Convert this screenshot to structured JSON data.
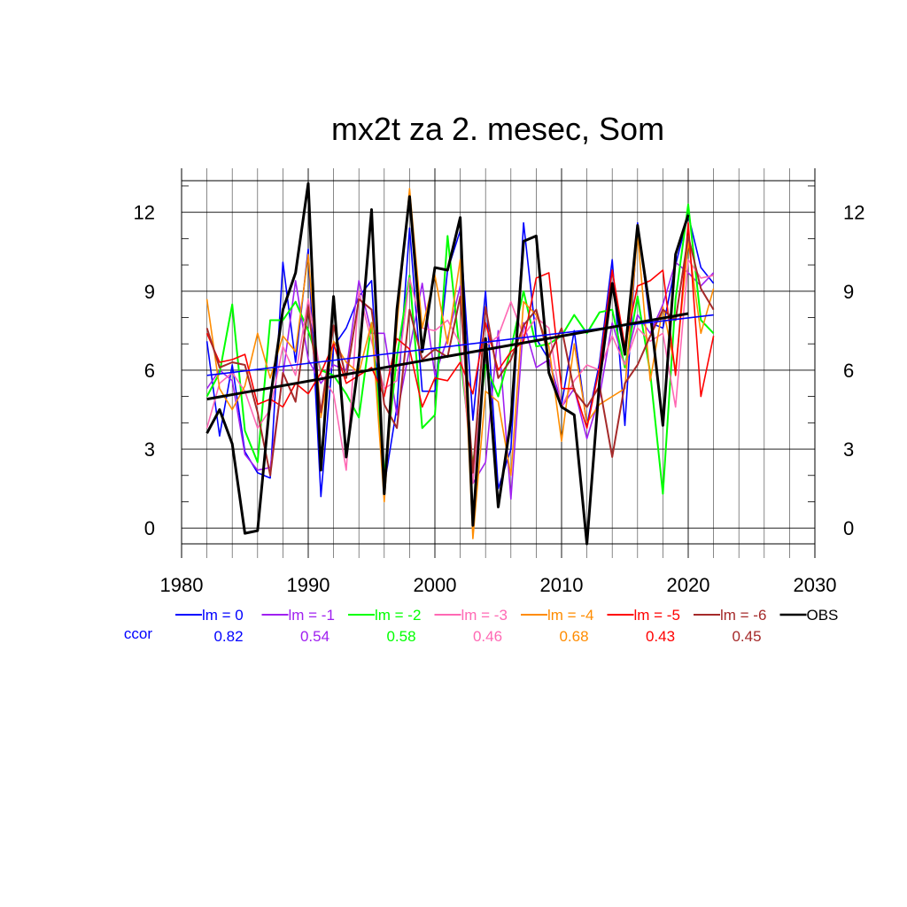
{
  "chart_data": {
    "type": "line",
    "title": "mx2t za 2. mesec, Som",
    "xlim": [
      1980,
      2030
    ],
    "ylim": [
      -0.6,
      13.2
    ],
    "x_ticks": [
      1980,
      1990,
      2000,
      2010,
      2020,
      2030
    ],
    "y_ticks": [
      0,
      3,
      6,
      9,
      12
    ],
    "y_ticks_right": [
      0,
      3,
      6,
      9,
      12
    ],
    "grid": true,
    "legend_position": "bottom",
    "ccor_label": "ccor",
    "series": [
      {
        "name": "lm = 0",
        "color": "#0000ff",
        "width": 1.6,
        "ccor": "0.82",
        "x": [
          1982,
          1983,
          1984,
          1985,
          1986,
          1987,
          1988,
          1989,
          1990,
          1991,
          1992,
          1993,
          1994,
          1995,
          1996,
          1997,
          1998,
          1999,
          2000,
          2001,
          2002,
          2003,
          2004,
          2005,
          2006,
          2007,
          2008,
          2009,
          2010,
          2011,
          2012,
          2013,
          2014,
          2015,
          2016,
          2017,
          2018,
          2019,
          2020,
          2021,
          2022
        ],
        "y": [
          7.1,
          3.5,
          6.2,
          2.9,
          2.1,
          1.9,
          10.1,
          6.3,
          10.6,
          1.2,
          6.9,
          7.6,
          8.8,
          9.4,
          1.6,
          4.6,
          11.4,
          5.2,
          5.2,
          9.8,
          11.3,
          4.1,
          9.0,
          1.5,
          3.0,
          11.6,
          7.2,
          6.4,
          4.7,
          7.5,
          3.9,
          6.3,
          10.2,
          3.9,
          11.6,
          7.8,
          7.6,
          10.0,
          11.9,
          9.9,
          9.3
        ],
        "trend": {
          "x": [
            1982,
            2022
          ],
          "y": [
            5.8,
            8.1
          ]
        }
      },
      {
        "name": "lm = -1",
        "color": "#a020f0",
        "width": 1.6,
        "ccor": "0.54",
        "x": [
          1982,
          1983,
          1984,
          1985,
          1986,
          1987,
          1988,
          1989,
          1990,
          1991,
          1992,
          1993,
          1994,
          1995,
          1996,
          1997,
          1998,
          1999,
          2000,
          2001,
          2002,
          2003,
          2004,
          2005,
          2006,
          2007,
          2008,
          2009,
          2010,
          2011,
          2012,
          2013,
          2014,
          2015,
          2016,
          2017,
          2018,
          2019,
          2020,
          2021,
          2022
        ],
        "y": [
          5.3,
          6.0,
          5.6,
          2.8,
          2.2,
          2.3,
          5.8,
          9.4,
          6.4,
          5.5,
          6.2,
          6.0,
          9.4,
          7.4,
          7.4,
          4.3,
          6.8,
          9.3,
          5.8,
          7.2,
          9.2,
          1.7,
          2.5,
          7.5,
          1.1,
          7.8,
          6.1,
          6.4,
          4.6,
          5.3,
          3.4,
          5.0,
          7.8,
          6.2,
          8.1,
          7.4,
          8.5,
          10.1,
          9.7,
          9.2,
          9.7
        ]
      },
      {
        "name": "lm = -2",
        "color": "#00ff00",
        "width": 2.0,
        "ccor": "0.58",
        "x": [
          1982,
          1983,
          1984,
          1985,
          1986,
          1987,
          1988,
          1989,
          1990,
          1991,
          1992,
          1993,
          1994,
          1995,
          1996,
          1997,
          1998,
          1999,
          2000,
          2001,
          2002,
          2003,
          2004,
          2005,
          2006,
          2007,
          2008,
          2009,
          2010,
          2011,
          2012,
          2013,
          2014,
          2015,
          2016,
          2017,
          2018,
          2019,
          2020,
          2021,
          2022
        ],
        "y": [
          5.0,
          5.9,
          8.5,
          3.7,
          2.5,
          7.9,
          7.9,
          8.6,
          7.5,
          6.0,
          5.8,
          5.1,
          4.2,
          7.8,
          2.0,
          6.5,
          9.6,
          3.8,
          4.3,
          11.1,
          6.5,
          2.4,
          6.2,
          5.0,
          6.8,
          9.0,
          6.9,
          7.0,
          7.3,
          8.1,
          7.4,
          8.2,
          8.3,
          6.1,
          8.8,
          5.9,
          1.3,
          8.7,
          12.3,
          7.9,
          7.4
        ]
      },
      {
        "name": "lm = -3",
        "color": "#ff69b4",
        "width": 1.6,
        "ccor": "0.46",
        "x": [
          1982,
          1983,
          1984,
          1985,
          1986,
          1987,
          1988,
          1989,
          1990,
          1991,
          1992,
          1993,
          1994,
          1995,
          1996,
          1997,
          1998,
          1999,
          2000,
          2001,
          2002,
          2003,
          2004,
          2005,
          2006,
          2007,
          2008,
          2009,
          2010,
          2011,
          2012,
          2013,
          2014,
          2015,
          2016,
          2017,
          2018,
          2019,
          2020,
          2021,
          2022
        ],
        "y": [
          3.8,
          5.5,
          5.9,
          5.2,
          3.8,
          4.5,
          6.9,
          5.8,
          8.7,
          5.8,
          5.1,
          2.2,
          9.0,
          7.1,
          5.3,
          5.6,
          9.5,
          7.6,
          7.5,
          7.9,
          7.0,
          1.7,
          6.9,
          7.3,
          8.6,
          7.3,
          8.0,
          7.6,
          4.6,
          5.6,
          6.2,
          6.0,
          7.3,
          6.2,
          7.6,
          7.1,
          7.4,
          4.6,
          10.2,
          9.5,
          9.6
        ]
      },
      {
        "name": "lm = -4",
        "color": "#ff8c00",
        "width": 1.6,
        "ccor": "0.68",
        "x": [
          1982,
          1983,
          1984,
          1985,
          1986,
          1987,
          1988,
          1989,
          1990,
          1991,
          1992,
          1993,
          1994,
          1995,
          1996,
          1997,
          1998,
          1999,
          2000,
          2001,
          2002,
          2003,
          2004,
          2005,
          2006,
          2007,
          2008,
          2009,
          2010,
          2011,
          2012,
          2013,
          2014,
          2015,
          2016,
          2017,
          2018,
          2019,
          2020,
          2021,
          2022
        ],
        "y": [
          8.7,
          5.3,
          4.5,
          5.4,
          7.4,
          5.7,
          7.3,
          6.7,
          10.4,
          4.2,
          7.1,
          6.3,
          5.9,
          7.8,
          1.0,
          7.7,
          12.9,
          7.6,
          9.6,
          7.0,
          10.2,
          -0.4,
          5.2,
          4.8,
          2.0,
          8.6,
          8.1,
          6.9,
          3.3,
          7.0,
          4.0,
          4.7,
          5.0,
          5.3,
          11.2,
          5.6,
          8.4,
          6.0,
          10.9,
          7.4,
          9.1
        ]
      },
      {
        "name": "lm = -5",
        "color": "#ff0000",
        "width": 1.6,
        "ccor": "0.43",
        "x": [
          1982,
          1983,
          1984,
          1985,
          1986,
          1987,
          1988,
          1989,
          1990,
          1991,
          1992,
          1993,
          1994,
          1995,
          1996,
          1997,
          1998,
          1999,
          2000,
          2001,
          2002,
          2003,
          2004,
          2005,
          2006,
          2007,
          2008,
          2009,
          2010,
          2011,
          2012,
          2013,
          2014,
          2015,
          2016,
          2017,
          2018,
          2019,
          2020,
          2021,
          2022
        ],
        "y": [
          7.4,
          6.3,
          6.4,
          6.6,
          4.7,
          4.9,
          4.6,
          5.5,
          5.1,
          5.9,
          7.0,
          5.5,
          5.8,
          6.1,
          5.0,
          7.2,
          6.8,
          4.6,
          5.7,
          5.6,
          6.3,
          5.1,
          7.8,
          6.0,
          6.7,
          7.1,
          9.5,
          9.7,
          5.3,
          5.3,
          3.8,
          6.1,
          9.8,
          6.9,
          9.2,
          9.4,
          9.8,
          5.8,
          11.6,
          5.0,
          7.3
        ]
      },
      {
        "name": "lm = -6",
        "color": "#a52a2a",
        "width": 2.0,
        "ccor": "0.45",
        "x": [
          1982,
          1983,
          1984,
          1985,
          1986,
          1987,
          1988,
          1989,
          1990,
          1991,
          1992,
          1993,
          1994,
          1995,
          1996,
          1997,
          1998,
          1999,
          2000,
          2001,
          2002,
          2003,
          2004,
          2005,
          2006,
          2007,
          2008,
          2009,
          2010,
          2011,
          2012,
          2013,
          2014,
          2015,
          2016,
          2017,
          2018,
          2019,
          2020,
          2021,
          2022
        ],
        "y": [
          7.6,
          6.1,
          6.3,
          6.2,
          4.4,
          2.0,
          5.9,
          4.8,
          8.4,
          4.4,
          7.7,
          5.7,
          8.7,
          8.3,
          4.7,
          3.8,
          8.3,
          6.4,
          6.8,
          6.5,
          8.8,
          2.1,
          8.4,
          5.7,
          6.4,
          7.7,
          8.3,
          6.5,
          7.6,
          5.2,
          4.6,
          5.4,
          2.7,
          5.5,
          6.2,
          7.3,
          8.3,
          7.9,
          11.1,
          9.1,
          8.3
        ]
      },
      {
        "name": "OBS",
        "color": "#000000",
        "width": 3.0,
        "x": [
          1982,
          1983,
          1984,
          1985,
          1986,
          1987,
          1988,
          1989,
          1990,
          1991,
          1992,
          1993,
          1994,
          1995,
          1996,
          1997,
          1998,
          1999,
          2000,
          2001,
          2002,
          2003,
          2004,
          2005,
          2006,
          2007,
          2008,
          2009,
          2010,
          2011,
          2012,
          2013,
          2014,
          2015,
          2016,
          2017,
          2018,
          2019,
          2020
        ],
        "y": [
          3.6,
          4.5,
          3.2,
          -0.2,
          -0.1,
          4.9,
          8.3,
          9.7,
          13.1,
          2.2,
          8.8,
          2.7,
          6.4,
          12.1,
          1.3,
          8.3,
          12.6,
          6.7,
          9.9,
          9.8,
          11.8,
          0.1,
          7.2,
          0.8,
          4.1,
          10.9,
          11.1,
          5.9,
          4.6,
          4.3,
          -0.6,
          5.6,
          9.3,
          6.6,
          11.5,
          8.2,
          3.9,
          10.4,
          11.9
        ],
        "trend": {
          "x": [
            1982,
            2020
          ],
          "y": [
            4.9,
            8.15
          ]
        }
      }
    ]
  }
}
